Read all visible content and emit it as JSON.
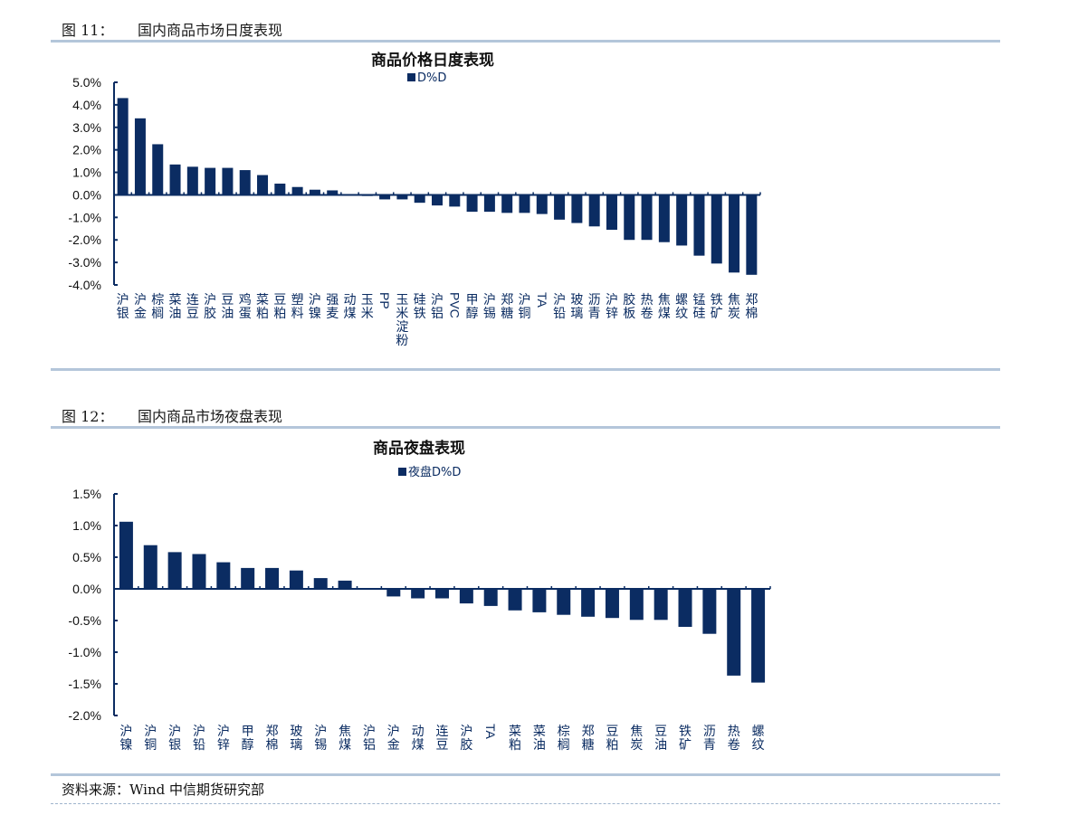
{
  "figures": [
    {
      "number": "图 11：",
      "caption": "国内商品市场日度表现"
    },
    {
      "number": "图 12：",
      "caption": "国内商品市场夜盘表现"
    }
  ],
  "source": "资料来源：Wind  中信期货研究部",
  "colors": {
    "bar": "#0b2c62",
    "rule": "#b4c6da"
  },
  "chart_data": [
    {
      "type": "bar",
      "title": "商品价格日度表现",
      "series": [
        {
          "name": "D%D",
          "values": [
            4.3,
            3.4,
            2.25,
            1.35,
            1.25,
            1.2,
            1.2,
            1.1,
            0.88,
            0.5,
            0.35,
            0.23,
            0.2,
            0.0,
            -0.05,
            -0.2,
            -0.2,
            -0.35,
            -0.47,
            -0.52,
            -0.75,
            -0.75,
            -0.8,
            -0.8,
            -0.85,
            -1.1,
            -1.25,
            -1.4,
            -1.55,
            -2.0,
            -2.0,
            -2.1,
            -2.25,
            -2.7,
            -3.05,
            -3.45,
            -3.55
          ]
        }
      ],
      "categories": [
        "沪银",
        "沪金",
        "棕榈",
        "菜油",
        "连豆",
        "沪胶",
        "豆油",
        "鸡蛋",
        "菜粕",
        "豆粕",
        "塑料",
        "沪镍",
        "强麦",
        "动煤",
        "玉米",
        "PP",
        "玉米淀粉",
        "硅铁",
        "沪铝",
        "PVC",
        "甲醇",
        "沪锡",
        "郑糖",
        "沪铜",
        "TA",
        "沪铅",
        "玻璃",
        "沥青",
        "沪锌",
        "胶板",
        "热卷",
        "焦煤",
        "螺纹",
        "锰硅",
        "铁矿",
        "焦炭",
        "郑棉"
      ],
      "ylim": [
        -4.0,
        5.0
      ],
      "yticks": [
        "5.0%",
        "4.0%",
        "3.0%",
        "2.0%",
        "1.0%",
        "0.0%",
        "-1.0%",
        "-2.0%",
        "-3.0%",
        "-4.0%"
      ],
      "grid": false,
      "legend": "top-center",
      "unit": "%"
    },
    {
      "type": "bar",
      "title": "商品夜盘表现",
      "series": [
        {
          "name": "夜盘D%D",
          "values": [
            1.06,
            0.69,
            0.58,
            0.55,
            0.42,
            0.33,
            0.33,
            0.29,
            0.17,
            0.13,
            0.0,
            -0.12,
            -0.15,
            -0.15,
            -0.23,
            -0.27,
            -0.34,
            -0.37,
            -0.41,
            -0.44,
            -0.46,
            -0.49,
            -0.49,
            -0.6,
            -0.71,
            -1.37,
            -1.48
          ]
        }
      ],
      "categories": [
        "沪镍",
        "沪铜",
        "沪银",
        "沪铅",
        "沪锌",
        "甲醇",
        "郑棉",
        "玻璃",
        "沪锡",
        "焦煤",
        "沪铝",
        "沪金",
        "动煤",
        "连豆",
        "沪胶",
        "TA",
        "菜粕",
        "菜油",
        "棕榈",
        "郑糖",
        "豆粕",
        "焦炭",
        "豆油",
        "铁矿",
        "沥青",
        "热卷",
        "螺纹"
      ],
      "ylim": [
        -2.0,
        1.5
      ],
      "yticks": [
        "1.5%",
        "1.0%",
        "0.5%",
        "0.0%",
        "-0.5%",
        "-1.0%",
        "-1.5%",
        "-2.0%"
      ],
      "grid": false,
      "legend": "top-center",
      "unit": "%"
    }
  ]
}
